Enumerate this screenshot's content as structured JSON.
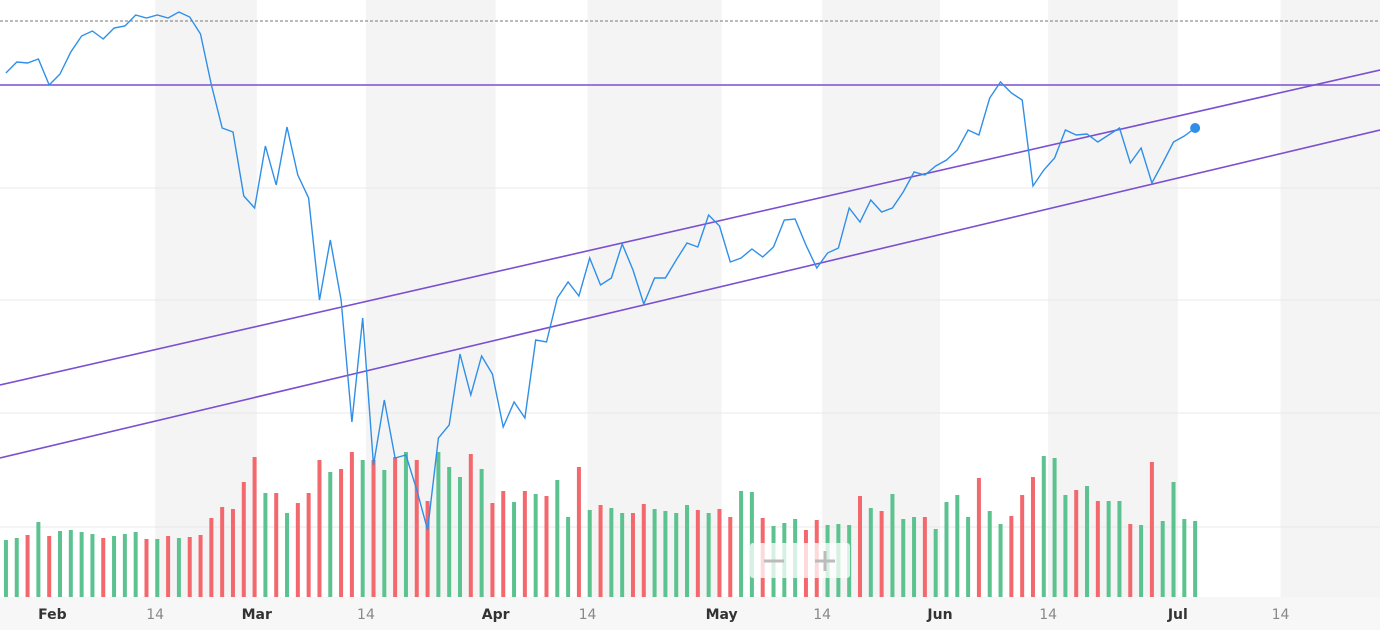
{
  "chart_data": {
    "type": "stock",
    "values": [
      557,
      568,
      567,
      571,
      545,
      556,
      578,
      594,
      599,
      591,
      602,
      604,
      615,
      612,
      615,
      612,
      618,
      613,
      596,
      545,
      502,
      498,
      434,
      422,
      484,
      445,
      503,
      455,
      432,
      330,
      390,
      330,
      208,
      312,
      165,
      230,
      172,
      175,
      140,
      100,
      192,
      205,
      276,
      235,
      274,
      256,
      203,
      228,
      212,
      290,
      288,
      332,
      348,
      334,
      372,
      345,
      352,
      386,
      360,
      326,
      352,
      352,
      370,
      387,
      383,
      415,
      404,
      368,
      372,
      381,
      373,
      383,
      410,
      411,
      385,
      362,
      377,
      382,
      422,
      408,
      430,
      418,
      422,
      438,
      458,
      455,
      464,
      470,
      480,
      500,
      495,
      532,
      548,
      537,
      530,
      444,
      460,
      472,
      500,
      495,
      496,
      488,
      495,
      502,
      467,
      482,
      447,
      467,
      488,
      494,
      502
    ],
    "color": "#2f8fe8",
    "ylim": [
      0,
      630
    ],
    "xlim": [
      -0.55,
      127.1
    ],
    "xticks": [
      {
        "value": 4.3,
        "label": "Feb"
      },
      {
        "value": 13.8,
        "label": "14"
      },
      {
        "value": 23.2,
        "label": "Mar"
      },
      {
        "value": 33.3,
        "label": "14"
      },
      {
        "value": 45.3,
        "label": "Apr"
      },
      {
        "value": 53.8,
        "label": "14"
      },
      {
        "value": 66.2,
        "label": "May"
      },
      {
        "value": 75.5,
        "label": "14"
      },
      {
        "value": 86.4,
        "label": "Jun"
      },
      {
        "value": 96.4,
        "label": "14"
      },
      {
        "value": 108.4,
        "label": "Jul"
      },
      {
        "value": 117.9,
        "label": "14"
      }
    ],
    "grid_lines": [
      442,
      330,
      217,
      103
    ],
    "reference_line": 609,
    "volume": {
      "axis": "y2",
      "up_color": "#5cc28f",
      "down_color": "#f2686c",
      "values": [
        57,
        59,
        62,
        75,
        61,
        66,
        67,
        65,
        63,
        59,
        61,
        63,
        65,
        58,
        58,
        61,
        59,
        60,
        62,
        79,
        90,
        88,
        115,
        140,
        104,
        104,
        84,
        94,
        104,
        137,
        125,
        128,
        145,
        137,
        137,
        127,
        140,
        145,
        137,
        96,
        145,
        130,
        120,
        143,
        128,
        94,
        106,
        95,
        106,
        103,
        101,
        117,
        80,
        130,
        87,
        92,
        89,
        84,
        84,
        93,
        88,
        86,
        84,
        92,
        87,
        84,
        88,
        80,
        106,
        105,
        79,
        71,
        74,
        78,
        67,
        77,
        72,
        73,
        72,
        101,
        89,
        86,
        103,
        78,
        80,
        80,
        68,
        95,
        102,
        80,
        119,
        86,
        73,
        81,
        102,
        120,
        141,
        139,
        102,
        107,
        111,
        96,
        96,
        96,
        73,
        72,
        135,
        76,
        115,
        78,
        76
      ]
    },
    "y2lim": [
      0,
      597
    ],
    "trend_lines": [
      {
        "color": "#7a4fd0",
        "x": [
          -0.55,
          127.1
        ],
        "values": [
          545,
          545
        ]
      },
      {
        "color": "#7a4fd0",
        "x": [
          -0.55,
          127.1
        ],
        "values": [
          245,
          560
        ]
      },
      {
        "color": "#7a4fd0",
        "x": [
          -0.55,
          127.1
        ],
        "values": [
          172,
          500
        ]
      }
    ]
  }
}
